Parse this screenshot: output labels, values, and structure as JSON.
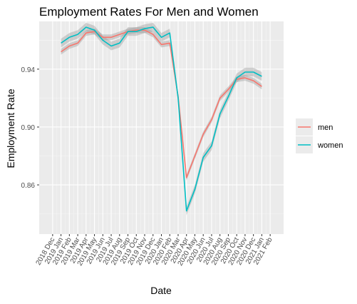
{
  "chart_data": {
    "type": "line",
    "title": "Employment Rates For Men and Women",
    "xlabel": "Date",
    "ylabel": "Employment Rate",
    "x_tick_labels": [
      "2018 Dec",
      "2019 Jan",
      "2019 Feb",
      "2019 Mar",
      "2019 Apr",
      "2019 May",
      "2019 Jun",
      "2019 Jul",
      "2019 Aug",
      "2019 Sep",
      "2019 Oct",
      "2019 Nov",
      "2019 Dec",
      "2020 Jan",
      "2020 Feb",
      "2020 Mar",
      "2020 Apr",
      "2020 May",
      "2020 Jun",
      "2020 Jul",
      "2020 Aug",
      "2020 Sep",
      "2020 Oct",
      "2020 Nov",
      "2020 Dec",
      "2021 Jan",
      "2021 Feb"
    ],
    "x": [
      "2019 Jan",
      "2019 Feb",
      "2019 Mar",
      "2019 Apr",
      "2019 May",
      "2019 Jun",
      "2019 Jul",
      "2019 Aug",
      "2019 Sep",
      "2019 Oct",
      "2019 Nov",
      "2019 Dec",
      "2020 Jan",
      "2020 Feb",
      "2020 Mar",
      "2020 Apr",
      "2020 May",
      "2020 Jun",
      "2020 Jul",
      "2020 Aug",
      "2020 Sep",
      "2020 Oct",
      "2020 Nov",
      "2020 Dec",
      "2021 Jan"
    ],
    "y_ticks": [
      0.86,
      0.9,
      0.94
    ],
    "y_tick_labels": [
      "0.86",
      "0.90",
      "0.94"
    ],
    "ylim": [
      0.826,
      0.973
    ],
    "legend_position": "right",
    "grid": true,
    "series": [
      {
        "name": "men",
        "color": "#F8766D",
        "values": [
          0.952,
          0.956,
          0.958,
          0.965,
          0.966,
          0.962,
          0.962,
          0.964,
          0.966,
          0.967,
          0.967,
          0.964,
          0.957,
          0.958,
          0.921,
          0.865,
          0.88,
          0.895,
          0.905,
          0.92,
          0.926,
          0.933,
          0.934,
          0.932,
          0.928
        ],
        "band": 0.002
      },
      {
        "name": "women",
        "color": "#00BFC4",
        "values": [
          0.958,
          0.962,
          0.964,
          0.969,
          0.967,
          0.96,
          0.956,
          0.958,
          0.966,
          0.966,
          0.968,
          0.969,
          0.962,
          0.965,
          0.92,
          0.842,
          0.857,
          0.879,
          0.887,
          0.909,
          0.921,
          0.934,
          0.938,
          0.938,
          0.935
        ],
        "band": 0.003
      }
    ]
  }
}
